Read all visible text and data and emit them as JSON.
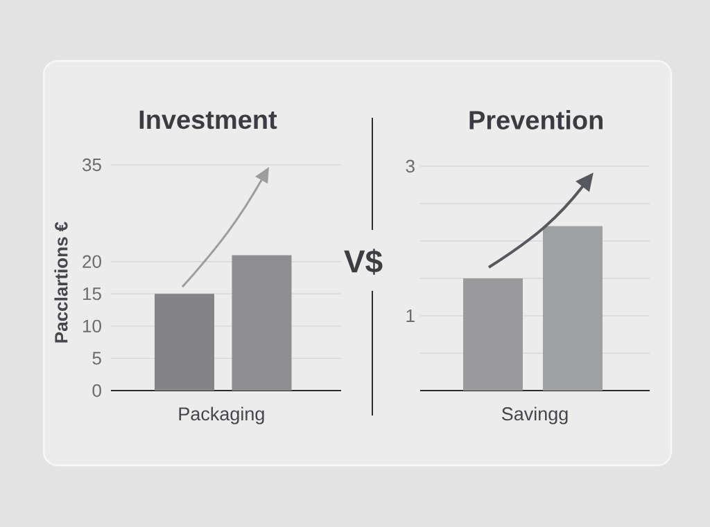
{
  "chart_data": [
    {
      "type": "bar",
      "title": "Investment",
      "ylabel": "Pacclartions €",
      "xlabel": "Packaging",
      "categories": [
        null,
        null
      ],
      "values": [
        15,
        21
      ],
      "colors": [
        "#848486",
        "#8e8e90"
      ],
      "ylim": [
        0,
        35
      ],
      "yticks": [
        0,
        5,
        10,
        15,
        20,
        35
      ],
      "grid": "y",
      "annotations": [
        "V$"
      ]
    },
    {
      "type": "bar",
      "title": "Prevention",
      "xlabel": "Savingg",
      "categories": [
        null,
        null
      ],
      "values": [
        1.5,
        2.2
      ],
      "colors": [
        "#9a9a9c",
        "#9fa0a2"
      ],
      "ylim": [
        0,
        3
      ],
      "yticks": [
        {
          "value": 0.5,
          "label": null
        },
        1,
        {
          "value": 1.5,
          "label": null
        },
        {
          "value": 2,
          "label": null
        },
        {
          "value": 2.5,
          "label": null
        },
        3
      ],
      "grid": "y"
    }
  ]
}
